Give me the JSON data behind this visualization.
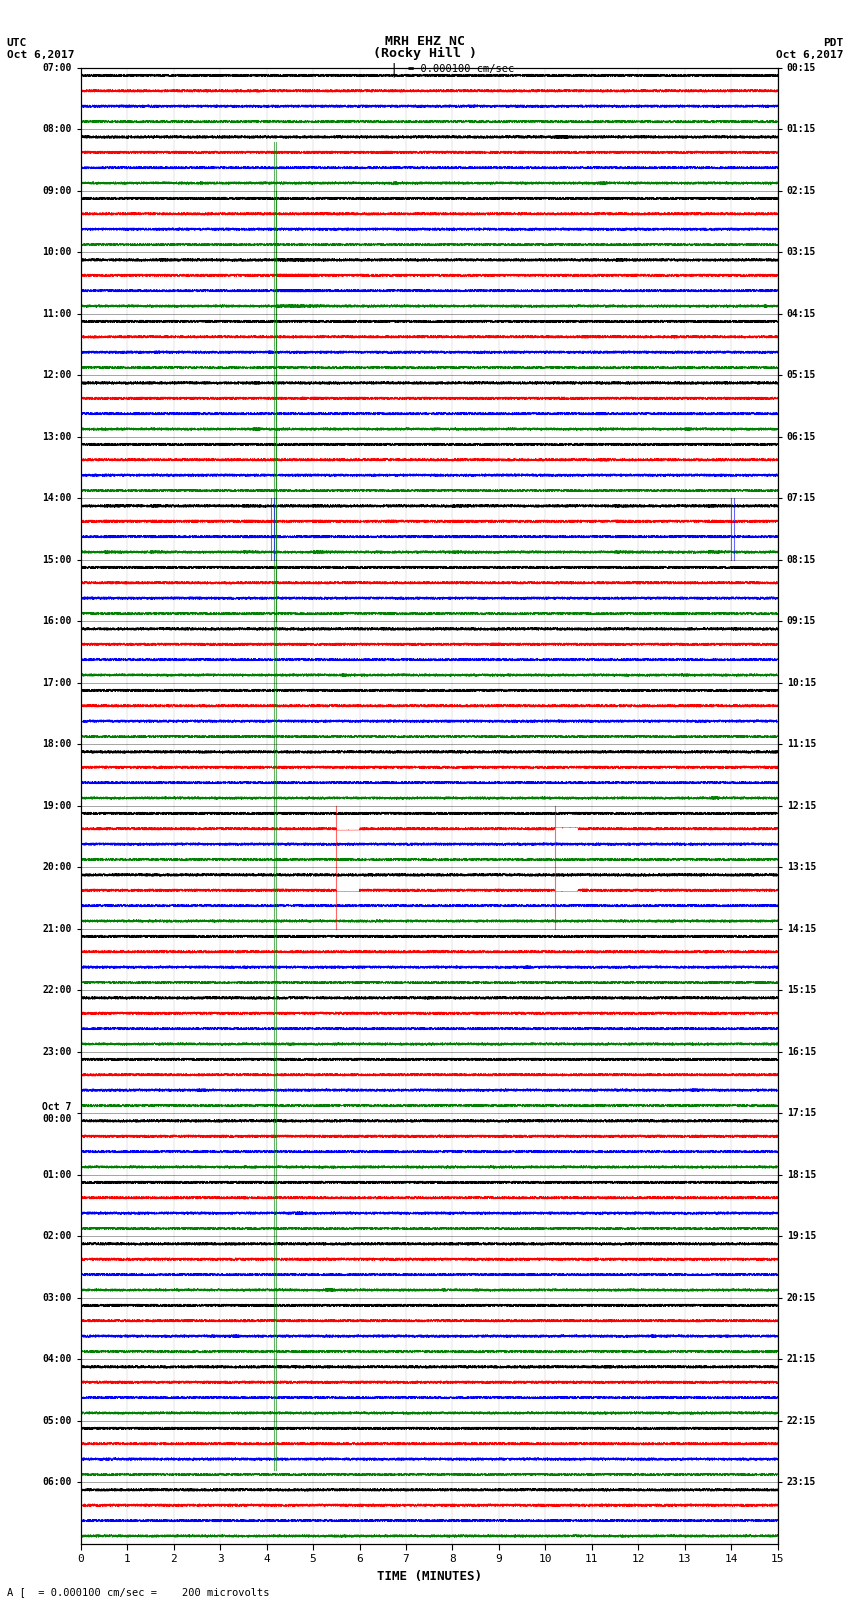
{
  "title_line1": "MRH EHZ NC",
  "title_line2": "(Rocky Hill )",
  "title_line3": "I = 0.000100 cm/sec",
  "left_label_top": "UTC",
  "left_label_date": "Oct 6,2017",
  "right_label_top": "PDT",
  "right_label_date": "Oct 6,2017",
  "bottom_note": "A [  = 0.000100 cm/sec =    200 microvolts",
  "xlabel": "TIME (MINUTES)",
  "utc_times": [
    "07:00",
    "08:00",
    "09:00",
    "10:00",
    "11:00",
    "12:00",
    "13:00",
    "14:00",
    "15:00",
    "16:00",
    "17:00",
    "18:00",
    "19:00",
    "20:00",
    "21:00",
    "22:00",
    "23:00",
    "Oct 7\n00:00",
    "01:00",
    "02:00",
    "03:00",
    "04:00",
    "05:00",
    "06:00"
  ],
  "pdt_times": [
    "00:15",
    "01:15",
    "02:15",
    "03:15",
    "04:15",
    "05:15",
    "06:15",
    "07:15",
    "08:15",
    "09:15",
    "10:15",
    "11:15",
    "12:15",
    "13:15",
    "14:15",
    "15:15",
    "16:15",
    "17:15",
    "18:15",
    "19:15",
    "20:15",
    "21:15",
    "22:15",
    "23:15"
  ],
  "n_rows": 24,
  "n_traces_per_row": 4,
  "trace_colors": [
    "#000000",
    "#ff0000",
    "#0000ff",
    "#008000"
  ],
  "x_ticks": [
    0,
    1,
    2,
    3,
    4,
    5,
    6,
    7,
    8,
    9,
    10,
    11,
    12,
    13,
    14,
    15
  ],
  "fig_width": 8.5,
  "fig_height": 16.13,
  "dpi": 100,
  "bg_color": "white",
  "event_rows_green_lines": [
    3,
    7
  ],
  "event_rows_red_lines": [
    13,
    19
  ],
  "event_rows_blue_lines": [
    7,
    8,
    12
  ]
}
